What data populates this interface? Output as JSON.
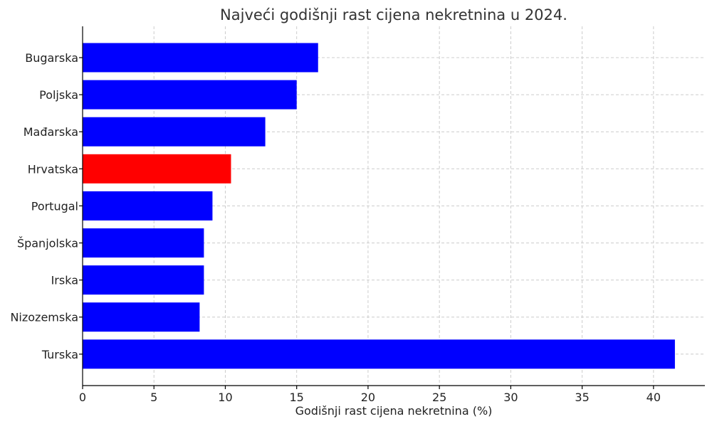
{
  "chart_data": {
    "type": "bar",
    "orientation": "horizontal",
    "title": "Najveći godišnji rast cijena nekretnina u 2024.",
    "xlabel": "Godišnji rast cijena nekretnina (%)",
    "ylabel": "",
    "xlim": [
      0,
      43.6
    ],
    "xticks": [
      0,
      5,
      10,
      15,
      20,
      25,
      30,
      35,
      40
    ],
    "grid": true,
    "categories": [
      "Bugarska",
      "Poljska",
      "Mađarska",
      "Hrvatska",
      "Portugal",
      "Španjolska",
      "Irska",
      "Nizozemska",
      "Turska"
    ],
    "values": [
      16.5,
      15.0,
      12.8,
      10.4,
      9.1,
      8.5,
      8.5,
      8.2,
      41.5
    ],
    "colors": [
      "#0000ff",
      "#0000ff",
      "#0000ff",
      "#ff0000",
      "#0000ff",
      "#0000ff",
      "#0000ff",
      "#0000ff",
      "#0000ff"
    ]
  }
}
